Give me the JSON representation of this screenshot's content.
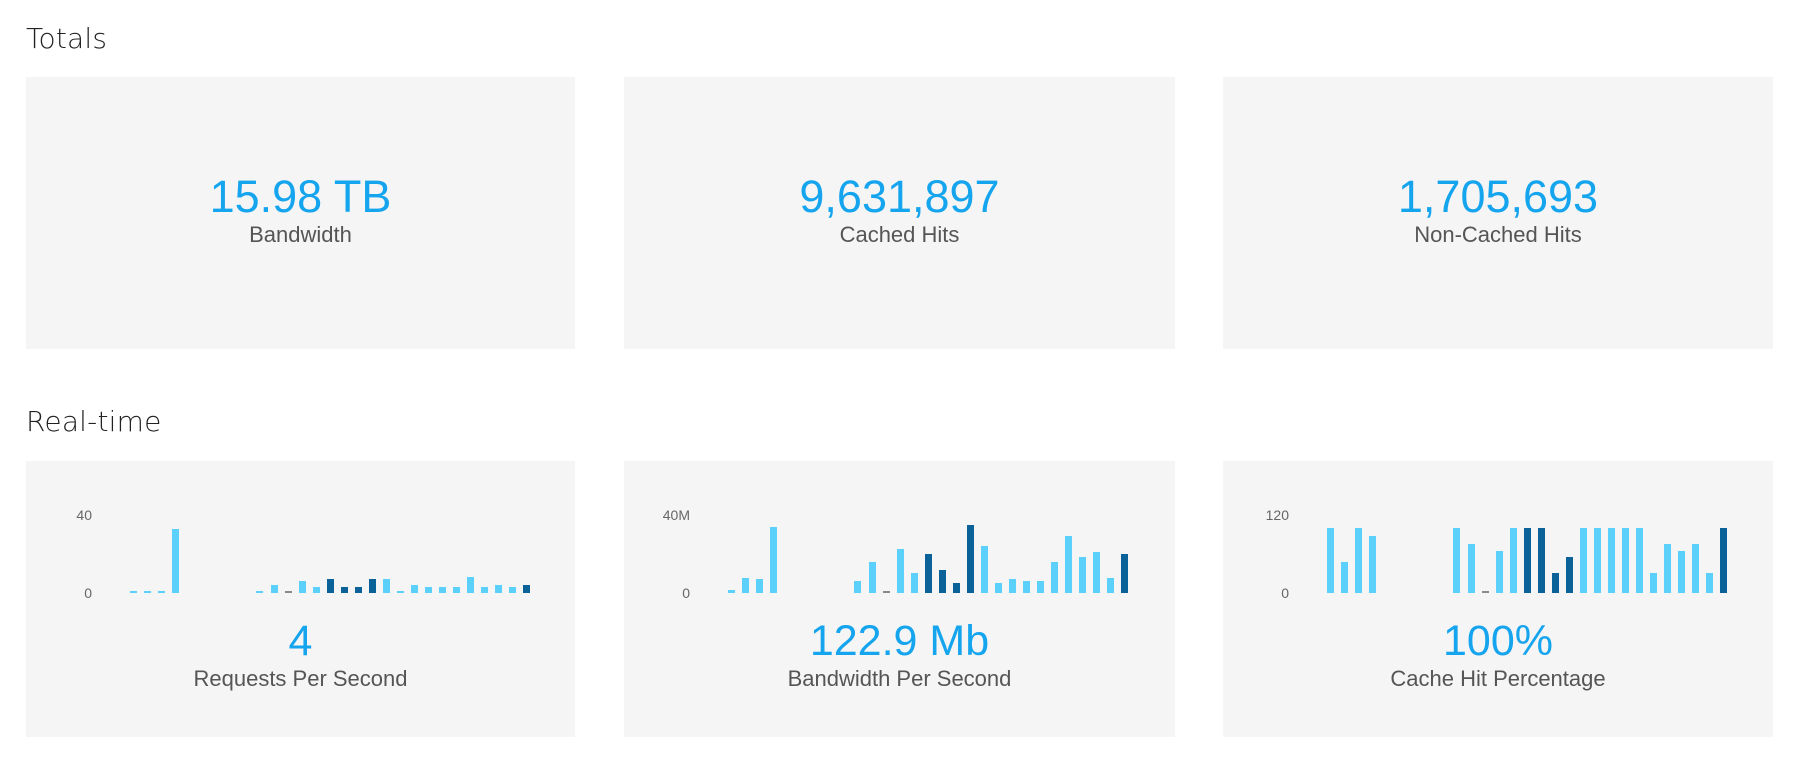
{
  "colors": {
    "accent": "#15a4ee",
    "bar_light": "#5bd0fb",
    "bar_dark": "#0a6299",
    "bar_grey": "#8a8a8a",
    "card_bg": "#f5f5f5",
    "label": "#555555",
    "heading": "#222222"
  },
  "totals": {
    "title": "Totals",
    "cards": [
      {
        "value": "15.98 TB",
        "label": "Bandwidth"
      },
      {
        "value": "9,631,897",
        "label": "Cached Hits"
      },
      {
        "value": "1,705,693",
        "label": "Non-Cached Hits"
      }
    ]
  },
  "realtime": {
    "title": "Real-time",
    "cards": [
      {
        "value": "4",
        "label": "Requests Per Second"
      },
      {
        "value": "122.9 Mb",
        "label": "Bandwidth Per Second"
      },
      {
        "value": "100%",
        "label": "Cache Hit Percentage"
      }
    ]
  },
  "chart_data": [
    {
      "type": "bar",
      "title": "Requests Per Second",
      "y_ticks": [
        "0",
        "40"
      ],
      "ylim": [
        0,
        40
      ],
      "slots": 29,
      "values": [
        1,
        1,
        1,
        33,
        null,
        null,
        null,
        null,
        null,
        1,
        4,
        1,
        6,
        3,
        7,
        3,
        3,
        7,
        7,
        1,
        4,
        3,
        3,
        3,
        8,
        3,
        4,
        3,
        4
      ],
      "colors": [
        "l",
        "l",
        "l",
        "l",
        null,
        null,
        null,
        null,
        null,
        "l",
        "l",
        "g",
        "l",
        "l",
        "d",
        "d",
        "d",
        "d",
        "l",
        "l",
        "l",
        "l",
        "l",
        "l",
        "l",
        "l",
        "l",
        "l",
        "d"
      ]
    },
    {
      "type": "bar",
      "title": "Bandwidth Per Second",
      "y_ticks": [
        "0",
        "40M"
      ],
      "ylim": [
        0,
        40
      ],
      "unit": "M",
      "slots": 29,
      "values": [
        1.5,
        7.7,
        7.2,
        34,
        null,
        null,
        null,
        null,
        null,
        6,
        16,
        1,
        22.5,
        10,
        20,
        12,
        5,
        35,
        24,
        5,
        7,
        6,
        6,
        16,
        29,
        18.5,
        21,
        7.7,
        20
      ],
      "colors": [
        "l",
        "l",
        "l",
        "l",
        null,
        null,
        null,
        null,
        null,
        "l",
        "l",
        "g",
        "l",
        "l",
        "d",
        "d",
        "d",
        "d",
        "l",
        "l",
        "l",
        "l",
        "l",
        "l",
        "l",
        "l",
        "l",
        "l",
        "d"
      ]
    },
    {
      "type": "bar",
      "title": "Cache Hit Percentage",
      "y_ticks": [
        "0",
        "120"
      ],
      "ylim": [
        0,
        120
      ],
      "slots": 29,
      "values": [
        100,
        48,
        100,
        88,
        null,
        null,
        null,
        null,
        null,
        100,
        75,
        3,
        65,
        100,
        100,
        100,
        30,
        55,
        100,
        100,
        100,
        100,
        100,
        30,
        75,
        65,
        75,
        30,
        100
      ],
      "colors": [
        "l",
        "l",
        "l",
        "l",
        null,
        null,
        null,
        null,
        null,
        "l",
        "l",
        "g",
        "l",
        "l",
        "d",
        "d",
        "d",
        "d",
        "l",
        "l",
        "l",
        "l",
        "l",
        "l",
        "l",
        "l",
        "l",
        "l",
        "d"
      ]
    }
  ]
}
